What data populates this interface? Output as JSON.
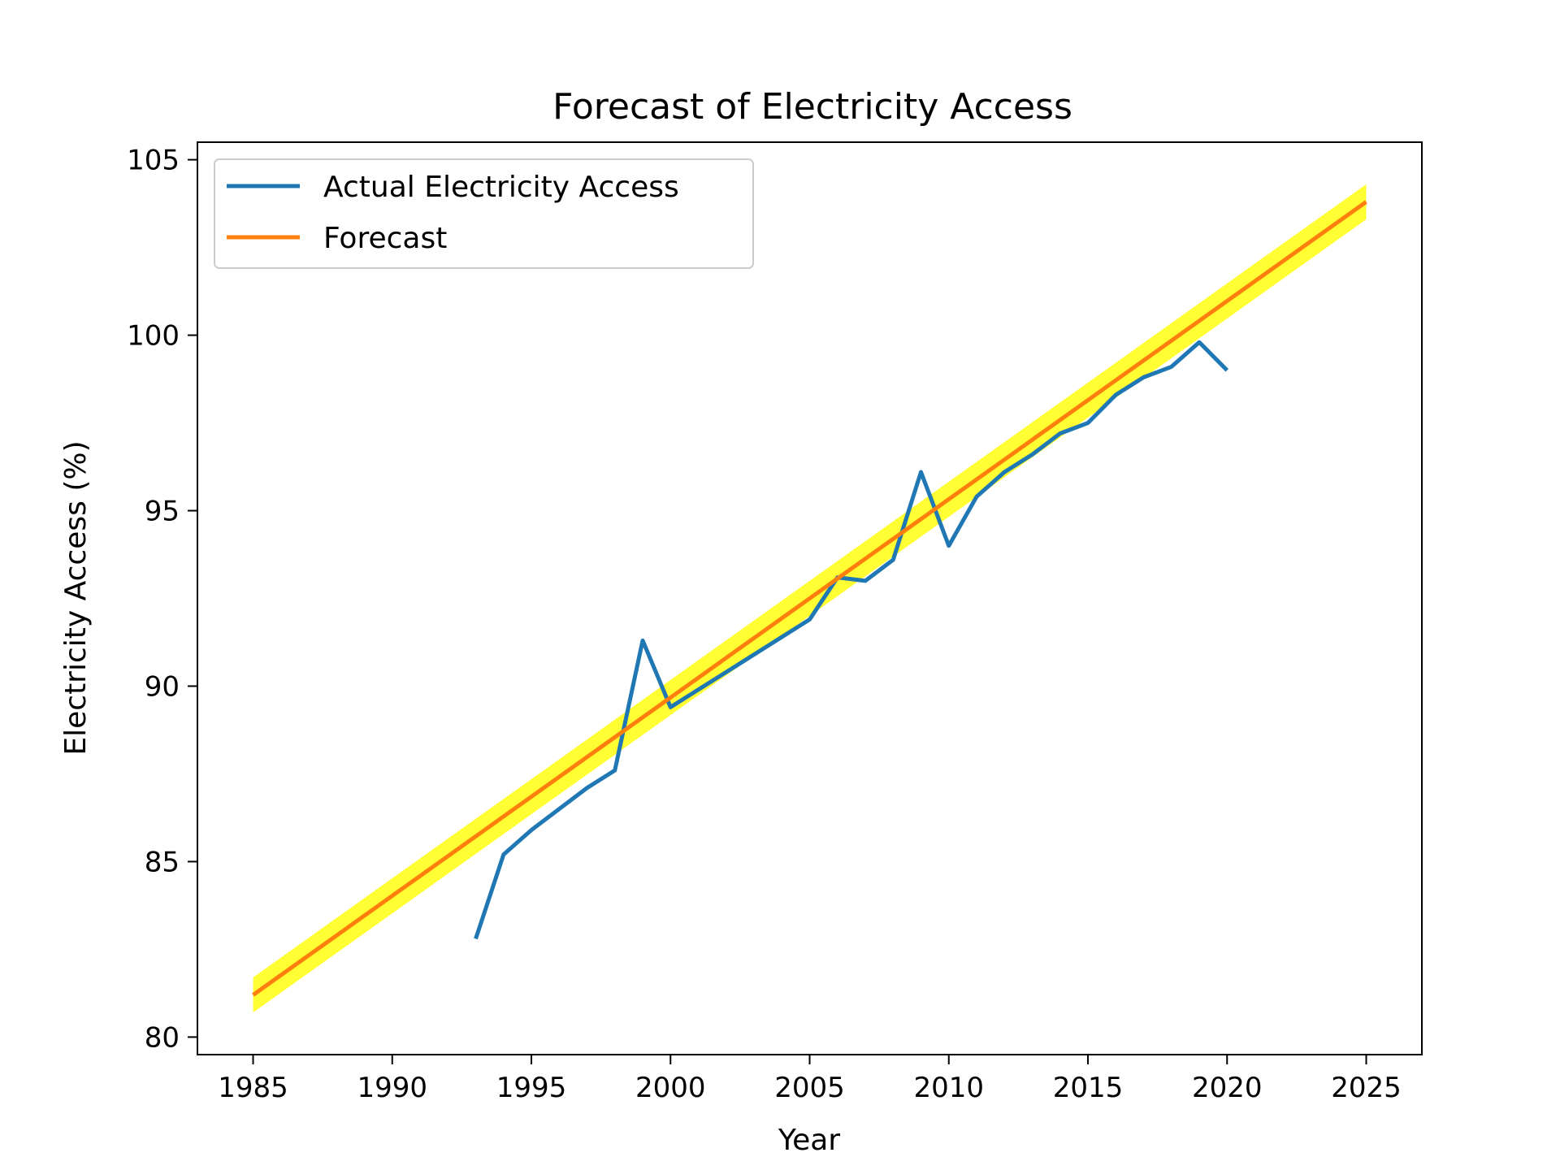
{
  "chart_data": {
    "type": "line",
    "title": "Forecast of Electricity Access",
    "xlabel": "Year",
    "ylabel": "Electricity Access (%)",
    "xlim": [
      1983,
      2027
    ],
    "ylim": [
      79.5,
      105.5
    ],
    "xticks": [
      1985,
      1990,
      1995,
      2000,
      2005,
      2010,
      2015,
      2020,
      2025
    ],
    "yticks": [
      80,
      85,
      90,
      95,
      100,
      105
    ],
    "grid": false,
    "legend_position": "upper-left",
    "series": [
      {
        "name": "Actual Electricity Access",
        "color": "#1f77b4",
        "x": [
          1993,
          1994,
          1995,
          1996,
          1997,
          1998,
          1999,
          2000,
          2001,
          2002,
          2003,
          2004,
          2005,
          2006,
          2007,
          2008,
          2009,
          2010,
          2011,
          2012,
          2013,
          2014,
          2015,
          2016,
          2017,
          2018,
          2019,
          2020
        ],
        "y": [
          82.8,
          85.2,
          85.9,
          86.5,
          87.1,
          87.6,
          91.3,
          89.4,
          89.9,
          90.4,
          90.9,
          91.4,
          91.9,
          93.1,
          93.0,
          93.6,
          96.1,
          94.0,
          95.4,
          96.1,
          96.6,
          97.2,
          97.5,
          98.3,
          98.8,
          99.1,
          99.8,
          99.0
        ]
      },
      {
        "name": "Forecast",
        "color": "#ff7f0e",
        "x": [
          1985,
          2025
        ],
        "y": [
          81.2,
          103.8
        ]
      }
    ],
    "confidence_band": {
      "color": "#ffff00",
      "x": [
        1985,
        2025
      ],
      "lower": [
        80.7,
        103.3
      ],
      "upper": [
        81.7,
        104.3
      ]
    }
  }
}
